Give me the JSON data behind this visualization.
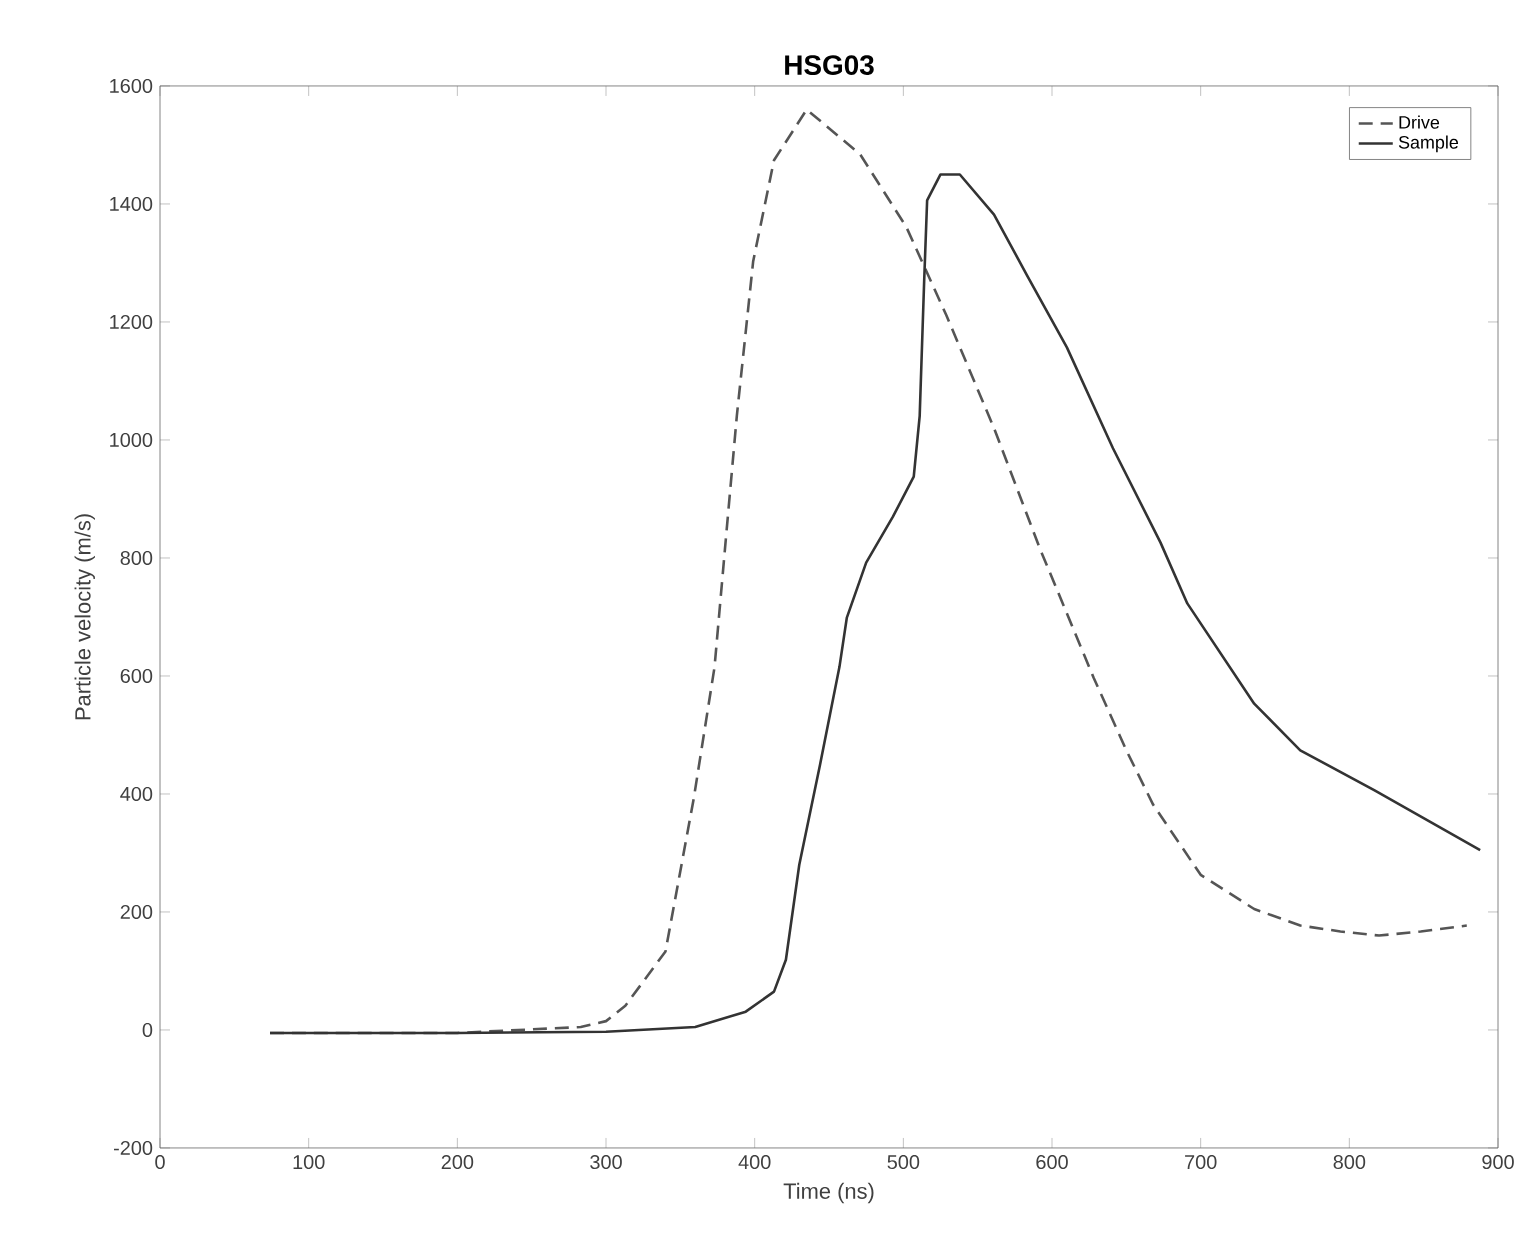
{
  "chart_data": {
    "type": "line",
    "title": "HSG03",
    "xlabel": "Time (ns)",
    "ylabel": "Particle velocity (m/s)",
    "xlim": [
      0,
      900
    ],
    "xticks": [
      0,
      100,
      200,
      300,
      400,
      500,
      600,
      700,
      800,
      900
    ],
    "ylim": [
      -200,
      1600
    ],
    "yticks": [
      -200,
      0,
      200,
      400,
      600,
      800,
      1000,
      1200,
      1400,
      1600
    ],
    "grid": false,
    "legend": "top right",
    "marker": "none",
    "series": [
      {
        "name": "Drive",
        "color": "#555555",
        "line_style": "dashed",
        "x": [
          74,
          200,
          283,
          300,
          313,
          340,
          359,
          373,
          380,
          388,
          399,
          413,
          435,
          471,
          502,
          529,
          561,
          592,
          628,
          650,
          668,
          700,
          736,
          767,
          794,
          820,
          848,
          879
        ],
        "values": [
          -5,
          -5,
          5,
          15,
          41,
          133,
          392,
          615,
          815,
          1041,
          1303,
          1474,
          1560,
          1484,
          1361,
          1211,
          1020,
          815,
          597,
          474,
          382,
          263,
          205,
          177,
          167,
          160,
          167,
          177
        ]
      },
      {
        "name": "Sample",
        "color": "#333333",
        "line_style": "solid",
        "x": [
          74,
          200,
          300,
          360,
          394,
          413,
          421,
          430,
          444,
          457,
          462,
          475,
          493,
          507,
          511,
          514,
          516,
          525,
          538,
          561,
          583,
          610,
          641,
          673,
          691,
          736,
          767,
          817,
          888
        ],
        "values": [
          -5,
          -5,
          -3,
          5,
          31,
          65,
          119,
          280,
          450,
          615,
          699,
          792,
          870,
          938,
          1041,
          1269,
          1406,
          1450,
          1450,
          1382,
          1280,
          1157,
          986,
          826,
          723,
          553,
          474,
          406,
          305
        ]
      }
    ]
  }
}
